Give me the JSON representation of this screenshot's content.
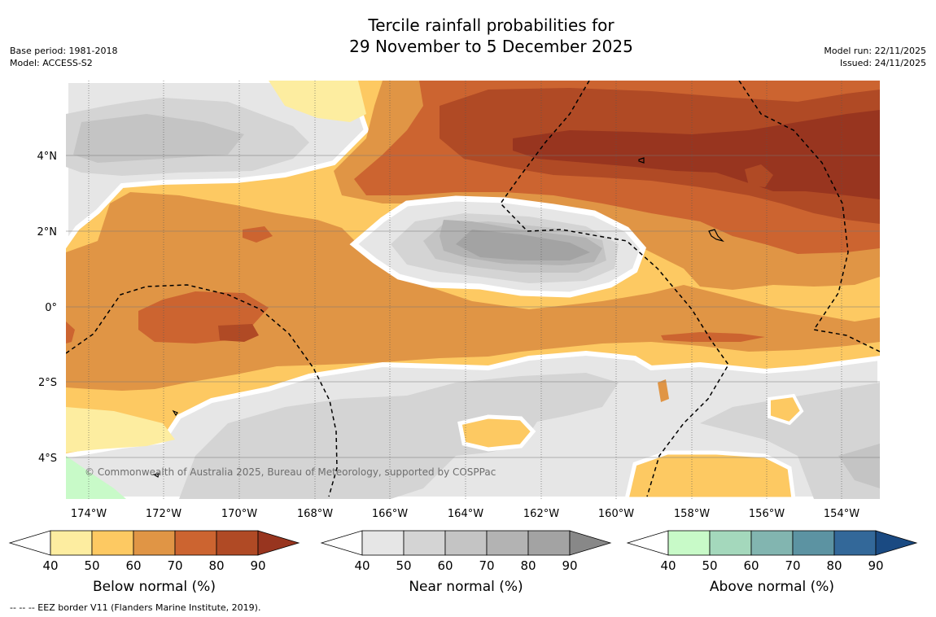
{
  "title": {
    "line1": "Tercile rainfall probabilities for",
    "line2": "29 November to 5 December 2025"
  },
  "meta_left": {
    "base_period": "Base period: 1981-2018",
    "model": "Model: ACCESS-S2"
  },
  "meta_right": {
    "model_run": "Model run: 22/11/2025",
    "issued": "Issued: 24/11/2025"
  },
  "map": {
    "lon_labels": [
      "174°W",
      "172°W",
      "170°W",
      "168°W",
      "166°W",
      "164°W",
      "162°W",
      "160°W",
      "158°W",
      "156°W",
      "154°W"
    ],
    "lat_labels": [
      "4°N",
      "2°N",
      "0°",
      "2°S",
      "4°S"
    ],
    "copyright": "© Commonwealth of Australia 2025, Bureau of Meteorology, supported by COSPPac",
    "region_colors": {
      "below_50": "#fdeda0",
      "below_60": "#fdc962",
      "below_70": "#e09545",
      "below_80": "#cc6430",
      "below_90": "#b04a25",
      "below_90plus": "#98351f",
      "near_50": "#e6e6e6",
      "near_60": "#d4d4d4",
      "near_70": "#c4c4c4",
      "near_80": "#b3b3b3",
      "near_90": "#a3a3a3",
      "above_50": "#c8fac8"
    }
  },
  "colorbars": [
    {
      "label": "Below normal (%)",
      "ticks": [
        "40",
        "50",
        "60",
        "70",
        "80",
        "90"
      ],
      "colors": [
        "#fdeda0",
        "#fdc962",
        "#e09545",
        "#cc6430",
        "#b04a25"
      ],
      "over_color": "#98351f"
    },
    {
      "label": "Near normal (%)",
      "ticks": [
        "40",
        "50",
        "60",
        "70",
        "80",
        "90"
      ],
      "colors": [
        "#e6e6e6",
        "#d4d4d4",
        "#c4c4c4",
        "#b3b3b3",
        "#a3a3a3"
      ],
      "over_color": "#888888"
    },
    {
      "label": "Above normal (%)",
      "ticks": [
        "40",
        "50",
        "60",
        "70",
        "80",
        "90"
      ],
      "colors": [
        "#c8fac8",
        "#a4d8bc",
        "#82b5b0",
        "#5c93a2",
        "#336899"
      ],
      "over_color": "#1a4a82"
    }
  ],
  "footer": "--  --  -- EEZ border V11 (Flanders Marine Institute, 2019)."
}
